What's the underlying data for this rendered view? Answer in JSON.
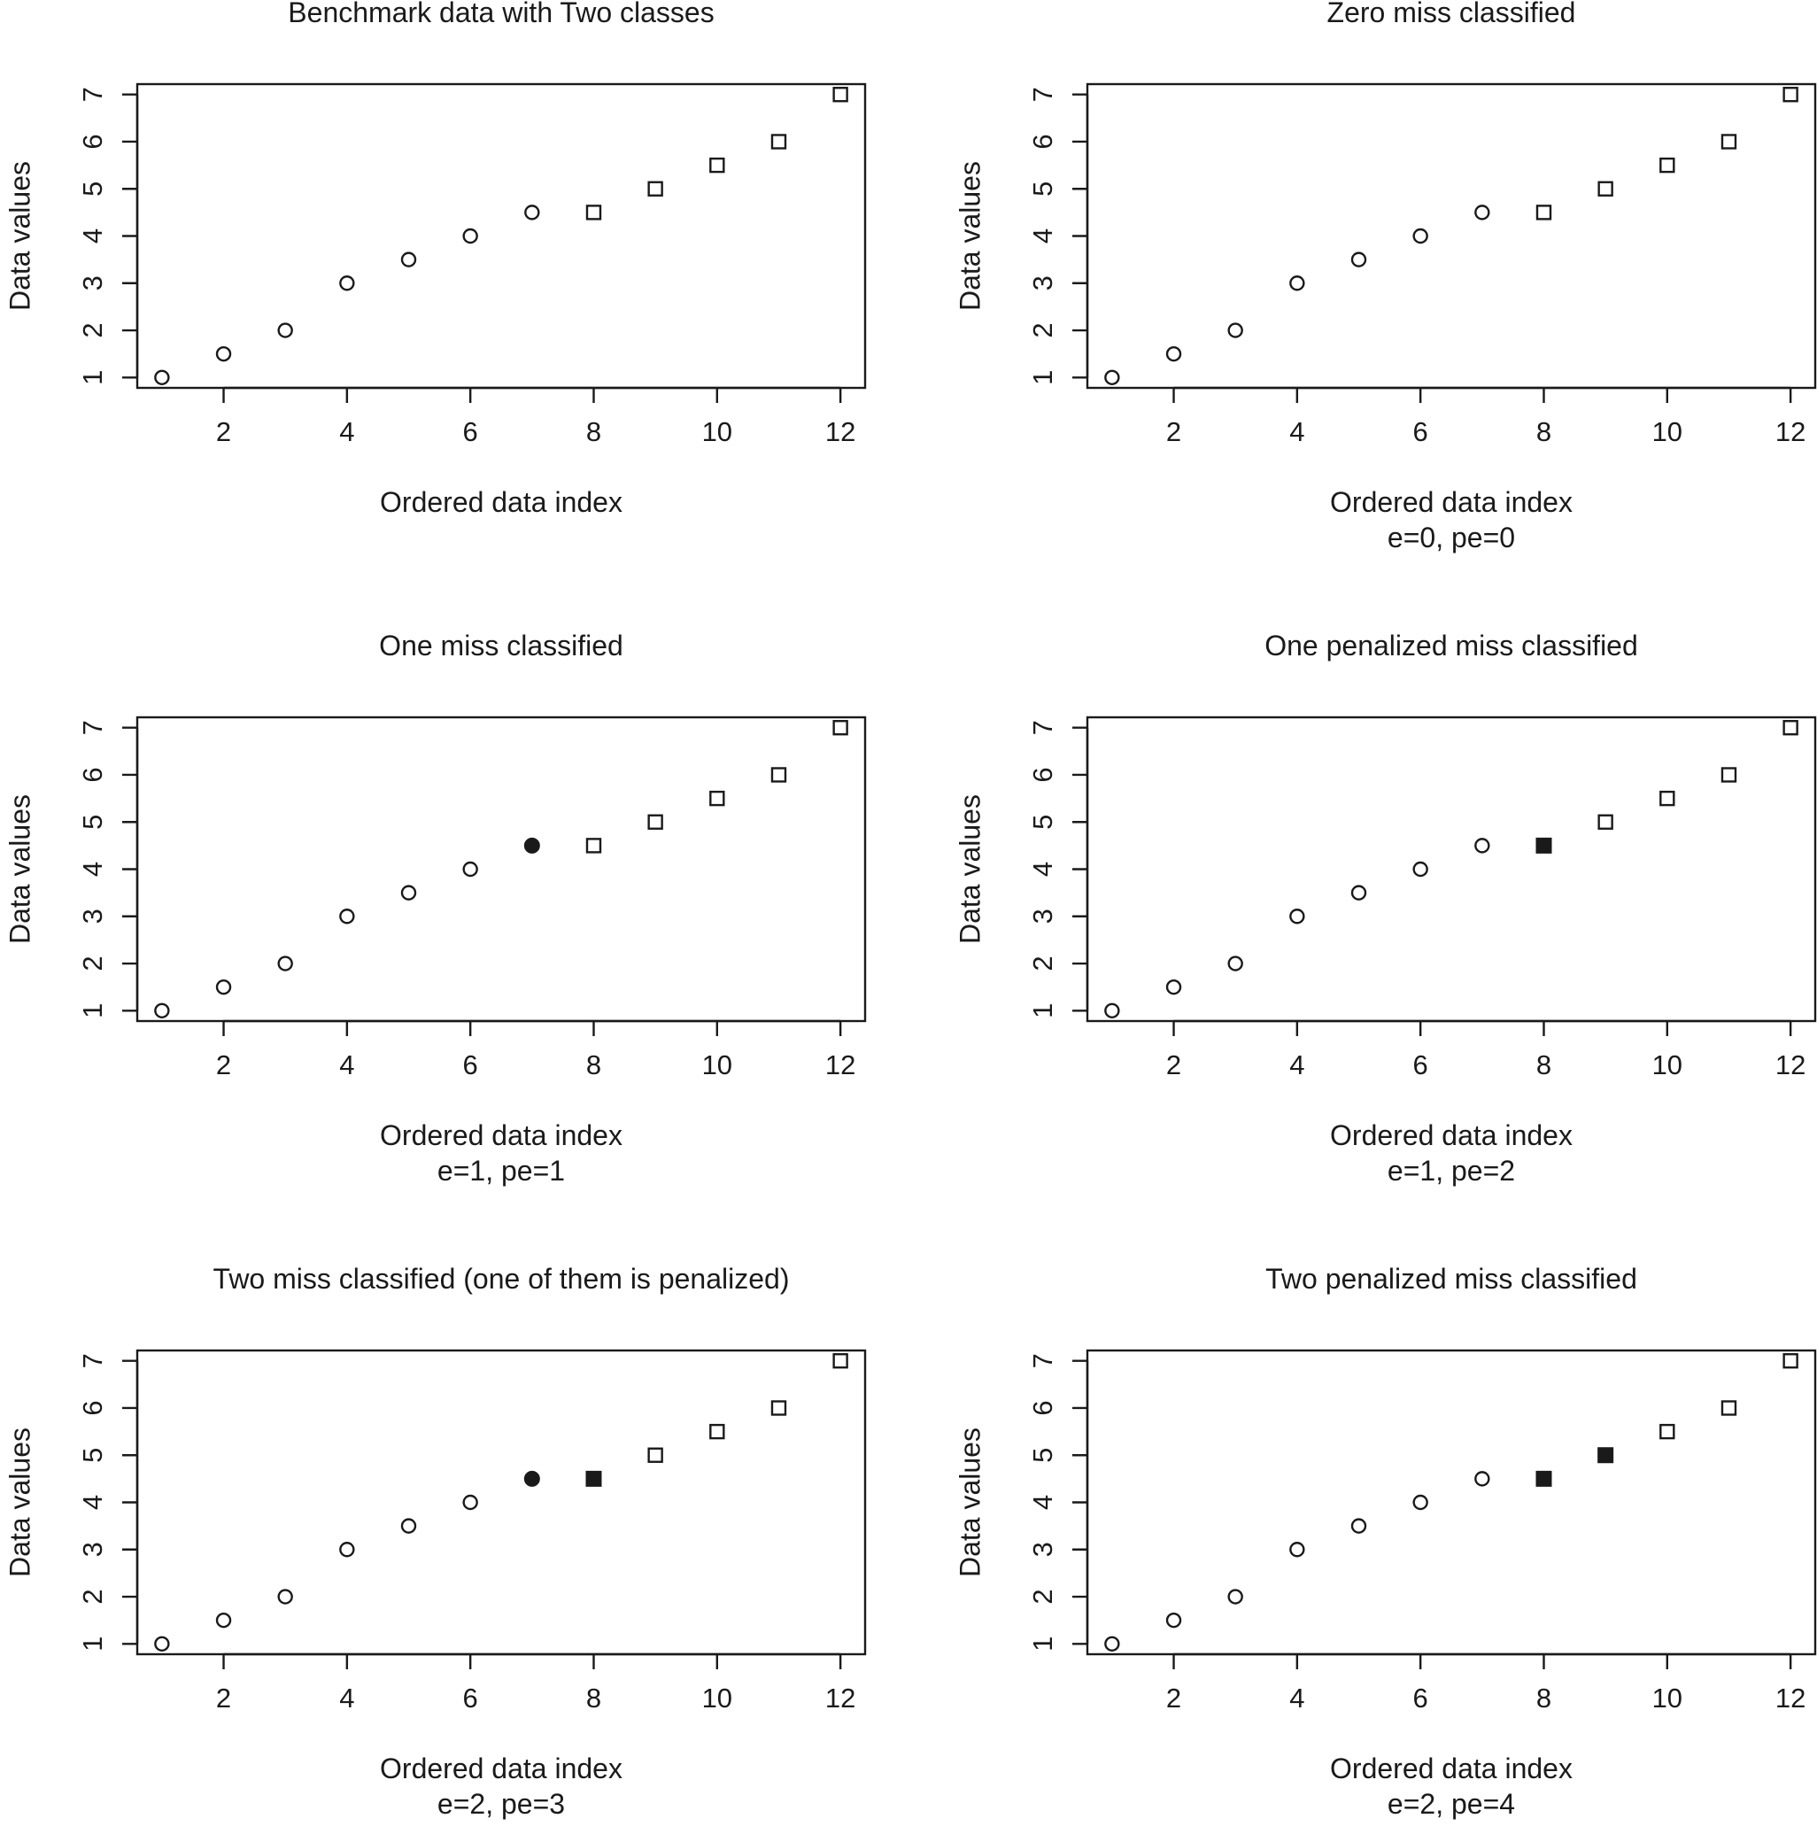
{
  "chart_data": [
    {
      "type": "scatter",
      "title": "Benchmark data with Two classes",
      "xlabel": "Ordered data index",
      "ylabel": "Data values",
      "subtitle": "",
      "x_ticks": [
        2,
        4,
        6,
        8,
        10,
        12
      ],
      "y_ticks": [
        1,
        2,
        3,
        4,
        5,
        6,
        7
      ],
      "xlim": [
        0.6,
        12.4
      ],
      "ylim": [
        0.78,
        7.22
      ],
      "grid": false,
      "series": [
        {
          "marker": "circle-open",
          "points": [
            [
              1,
              1
            ],
            [
              2,
              1.5
            ],
            [
              3,
              2
            ],
            [
              4,
              3
            ],
            [
              5,
              3.5
            ],
            [
              6,
              4
            ],
            [
              7,
              4.5
            ]
          ]
        },
        {
          "marker": "square-open",
          "points": [
            [
              8,
              4.5
            ],
            [
              9,
              5
            ],
            [
              10,
              5.5
            ],
            [
              11,
              6
            ],
            [
              12,
              7
            ]
          ]
        }
      ]
    },
    {
      "type": "scatter",
      "title": "Zero miss classified",
      "xlabel": "Ordered data index",
      "ylabel": "Data values",
      "subtitle": "e=0, pe=0",
      "x_ticks": [
        2,
        4,
        6,
        8,
        10,
        12
      ],
      "y_ticks": [
        1,
        2,
        3,
        4,
        5,
        6,
        7
      ],
      "xlim": [
        0.6,
        12.4
      ],
      "ylim": [
        0.78,
        7.22
      ],
      "grid": false,
      "series": [
        {
          "marker": "circle-open",
          "points": [
            [
              1,
              1
            ],
            [
              2,
              1.5
            ],
            [
              3,
              2
            ],
            [
              4,
              3
            ],
            [
              5,
              3.5
            ],
            [
              6,
              4
            ],
            [
              7,
              4.5
            ]
          ]
        },
        {
          "marker": "square-open",
          "points": [
            [
              8,
              4.5
            ],
            [
              9,
              5
            ],
            [
              10,
              5.5
            ],
            [
              11,
              6
            ],
            [
              12,
              7
            ]
          ]
        }
      ]
    },
    {
      "type": "scatter",
      "title": "One miss classified",
      "xlabel": "Ordered data index",
      "ylabel": "Data values",
      "subtitle": "e=1, pe=1",
      "x_ticks": [
        2,
        4,
        6,
        8,
        10,
        12
      ],
      "y_ticks": [
        1,
        2,
        3,
        4,
        5,
        6,
        7
      ],
      "xlim": [
        0.6,
        12.4
      ],
      "ylim": [
        0.78,
        7.22
      ],
      "grid": false,
      "series": [
        {
          "marker": "circle-open",
          "points": [
            [
              1,
              1
            ],
            [
              2,
              1.5
            ],
            [
              3,
              2
            ],
            [
              4,
              3
            ],
            [
              5,
              3.5
            ],
            [
              6,
              4
            ]
          ]
        },
        {
          "marker": "circle-filled",
          "points": [
            [
              7,
              4.5
            ]
          ]
        },
        {
          "marker": "square-open",
          "points": [
            [
              8,
              4.5
            ],
            [
              9,
              5
            ],
            [
              10,
              5.5
            ],
            [
              11,
              6
            ],
            [
              12,
              7
            ]
          ]
        }
      ]
    },
    {
      "type": "scatter",
      "title": "One penalized miss classified",
      "xlabel": "Ordered data index",
      "ylabel": "Data values",
      "subtitle": "e=1, pe=2",
      "x_ticks": [
        2,
        4,
        6,
        8,
        10,
        12
      ],
      "y_ticks": [
        1,
        2,
        3,
        4,
        5,
        6,
        7
      ],
      "xlim": [
        0.6,
        12.4
      ],
      "ylim": [
        0.78,
        7.22
      ],
      "grid": false,
      "series": [
        {
          "marker": "circle-open",
          "points": [
            [
              1,
              1
            ],
            [
              2,
              1.5
            ],
            [
              3,
              2
            ],
            [
              4,
              3
            ],
            [
              5,
              3.5
            ],
            [
              6,
              4
            ],
            [
              7,
              4.5
            ]
          ]
        },
        {
          "marker": "square-filled",
          "points": [
            [
              8,
              4.5
            ]
          ]
        },
        {
          "marker": "square-open",
          "points": [
            [
              9,
              5
            ],
            [
              10,
              5.5
            ],
            [
              11,
              6
            ],
            [
              12,
              7
            ]
          ]
        }
      ]
    },
    {
      "type": "scatter",
      "title": "Two miss classified (one of them is penalized)",
      "xlabel": "Ordered data index",
      "ylabel": "Data values",
      "subtitle": "e=2, pe=3",
      "x_ticks": [
        2,
        4,
        6,
        8,
        10,
        12
      ],
      "y_ticks": [
        1,
        2,
        3,
        4,
        5,
        6,
        7
      ],
      "xlim": [
        0.6,
        12.4
      ],
      "ylim": [
        0.78,
        7.22
      ],
      "grid": false,
      "series": [
        {
          "marker": "circle-open",
          "points": [
            [
              1,
              1
            ],
            [
              2,
              1.5
            ],
            [
              3,
              2
            ],
            [
              4,
              3
            ],
            [
              5,
              3.5
            ],
            [
              6,
              4
            ]
          ]
        },
        {
          "marker": "circle-filled",
          "points": [
            [
              7,
              4.5
            ]
          ]
        },
        {
          "marker": "square-filled",
          "points": [
            [
              8,
              4.5
            ]
          ]
        },
        {
          "marker": "square-open",
          "points": [
            [
              9,
              5
            ],
            [
              10,
              5.5
            ],
            [
              11,
              6
            ],
            [
              12,
              7
            ]
          ]
        }
      ]
    },
    {
      "type": "scatter",
      "title": "Two penalized miss classified",
      "xlabel": "Ordered data index",
      "ylabel": "Data values",
      "subtitle": "e=2, pe=4",
      "x_ticks": [
        2,
        4,
        6,
        8,
        10,
        12
      ],
      "y_ticks": [
        1,
        2,
        3,
        4,
        5,
        6,
        7
      ],
      "xlim": [
        0.6,
        12.4
      ],
      "ylim": [
        0.78,
        7.22
      ],
      "grid": false,
      "series": [
        {
          "marker": "circle-open",
          "points": [
            [
              1,
              1
            ],
            [
              2,
              1.5
            ],
            [
              3,
              2
            ],
            [
              4,
              3
            ],
            [
              5,
              3.5
            ],
            [
              6,
              4
            ],
            [
              7,
              4.5
            ]
          ]
        },
        {
          "marker": "square-filled",
          "points": [
            [
              8,
              4.5
            ],
            [
              9,
              5
            ]
          ]
        },
        {
          "marker": "square-open",
          "points": [
            [
              10,
              5.5
            ],
            [
              11,
              6
            ],
            [
              12,
              7
            ]
          ]
        }
      ]
    }
  ],
  "colors": {
    "ink": "#1a1a1a",
    "background": "#ffffff"
  }
}
